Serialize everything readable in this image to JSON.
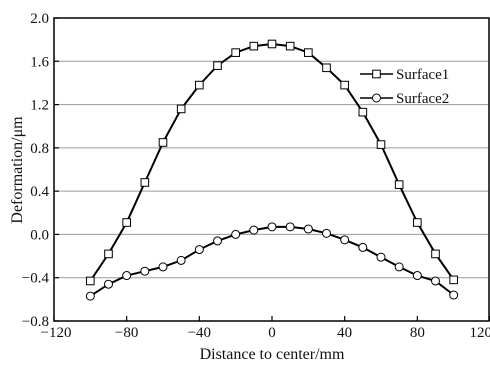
{
  "chart_data": {
    "type": "line",
    "xlabel": "Distance to center/mm",
    "ylabel": "Deformation/μm",
    "xlim": [
      -120,
      120
    ],
    "ylim": [
      -0.8,
      2.0
    ],
    "x_ticks": [
      "−120",
      "−80",
      "−40",
      "0",
      "40",
      "80",
      "120"
    ],
    "y_ticks": [
      "−0.8",
      "−0.4",
      "0.0",
      "0.4",
      "0.8",
      "1.2",
      "1.6",
      "2.0"
    ],
    "grid": "horizontal",
    "legend_position": "right",
    "series": [
      {
        "name": "Surface1",
        "marker": "square",
        "color": "#000000",
        "points": [
          [
            -100,
            -0.43
          ],
          [
            -90,
            -0.18
          ],
          [
            -80,
            0.11
          ],
          [
            -70,
            0.48
          ],
          [
            -60,
            0.85
          ],
          [
            -50,
            1.16
          ],
          [
            -40,
            1.38
          ],
          [
            -30,
            1.56
          ],
          [
            -20,
            1.68
          ],
          [
            -10,
            1.74
          ],
          [
            0,
            1.76
          ],
          [
            10,
            1.74
          ],
          [
            20,
            1.68
          ],
          [
            30,
            1.54
          ],
          [
            40,
            1.38
          ],
          [
            50,
            1.13
          ],
          [
            60,
            0.83
          ],
          [
            70,
            0.46
          ],
          [
            80,
            0.11
          ],
          [
            90,
            -0.18
          ],
          [
            100,
            -0.42
          ]
        ]
      },
      {
        "name": "Surface2",
        "marker": "circle",
        "color": "#000000",
        "points": [
          [
            -100,
            -0.57
          ],
          [
            -90,
            -0.46
          ],
          [
            -80,
            -0.38
          ],
          [
            -70,
            -0.34
          ],
          [
            -60,
            -0.3
          ],
          [
            -50,
            -0.24
          ],
          [
            -40,
            -0.14
          ],
          [
            -30,
            -0.06
          ],
          [
            -20,
            0.0
          ],
          [
            -10,
            0.04
          ],
          [
            0,
            0.07
          ],
          [
            10,
            0.07
          ],
          [
            20,
            0.05
          ],
          [
            30,
            0.01
          ],
          [
            40,
            -0.05
          ],
          [
            50,
            -0.12
          ],
          [
            60,
            -0.21
          ],
          [
            70,
            -0.3
          ],
          [
            80,
            -0.38
          ],
          [
            90,
            -0.43
          ],
          [
            100,
            -0.56
          ]
        ]
      }
    ]
  }
}
